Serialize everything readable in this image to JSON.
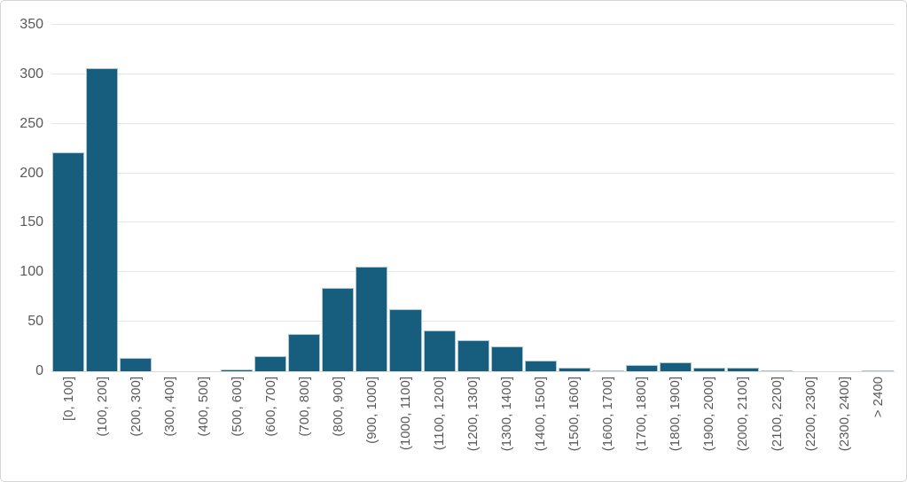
{
  "chart_data": {
    "type": "bar",
    "title": "",
    "xlabel": "",
    "ylabel": "",
    "categories": [
      "[0, 100]",
      "(100, 200]",
      "(200, 300]",
      "(300, 400]",
      "(400, 500]",
      "(500, 600]",
      "(600, 700]",
      "(700, 800]",
      "(800, 900]",
      "(900, 1000]",
      "(1000, 1100]",
      "(1100, 1200]",
      "(1200, 1300]",
      "(1300, 1400]",
      "(1400, 1500]",
      "(1500, 1600]",
      "(1600, 1700]",
      "(1700, 1800]",
      "(1800, 1900]",
      "(1900, 2000]",
      "(2000, 2100]",
      "(2100, 2200]",
      "(2200, 2300]",
      "(2300, 2400]",
      "> 2400"
    ],
    "values": [
      221,
      306,
      13,
      0,
      0,
      2,
      15,
      38,
      84,
      106,
      63,
      41,
      31,
      25,
      11,
      4,
      1,
      6,
      9,
      4,
      4,
      1,
      0,
      0,
      1
    ],
    "ylim": [
      0,
      350
    ],
    "yticks": [
      0,
      50,
      100,
      150,
      200,
      250,
      300,
      350
    ],
    "grid": true,
    "legend": "none",
    "x_label_rotation_deg": 90,
    "colors": {
      "bar_fill": "#175d7e",
      "bar_border": "#a9c6d4",
      "gridline": "#e6e6e6",
      "axis_line": "#d9d9d9",
      "tick_label": "#595959",
      "chart_border": "#d5d5d5",
      "background": "#ffffff"
    }
  }
}
